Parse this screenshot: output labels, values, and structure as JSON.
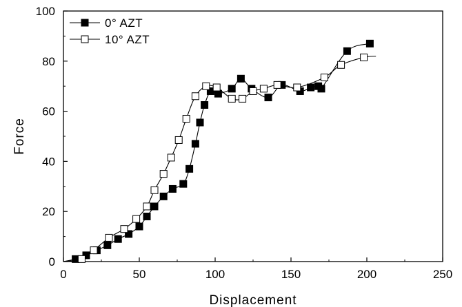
{
  "chart_data": {
    "type": "line",
    "title": "",
    "xlabel": "Displacement",
    "ylabel": "Force",
    "xlim": [
      0,
      250
    ],
    "ylim": [
      0,
      100
    ],
    "x_ticks": [
      0,
      50,
      100,
      150,
      200,
      250
    ],
    "y_ticks": [
      0,
      20,
      40,
      60,
      80,
      100
    ],
    "x_tick_labels": [
      "0",
      "50",
      "100",
      "150",
      "200",
      "250"
    ],
    "y_tick_labels": [
      "0",
      "20",
      "40",
      "60",
      "80",
      "100"
    ],
    "grid": false,
    "legend_position": "top-left",
    "series": [
      {
        "name": "0° AZT",
        "marker": "filled-square",
        "color": "#000000",
        "x": [
          8,
          15,
          22,
          29,
          36,
          43,
          50,
          55,
          60,
          66,
          72,
          79,
          83,
          87,
          90,
          93,
          97,
          102,
          111,
          117,
          124,
          135,
          144,
          156,
          163,
          168,
          170,
          187,
          202
        ],
        "y": [
          1,
          2.5,
          4.5,
          6.5,
          9,
          11,
          14,
          18,
          22,
          26,
          29,
          31,
          37,
          47,
          55.5,
          62.5,
          68,
          67,
          69,
          73,
          69,
          65.5,
          70.5,
          68,
          69.5,
          70,
          69,
          84,
          87
        ]
      },
      {
        "name": "10° AZT",
        "marker": "open-square",
        "color": "#000000",
        "x": [
          12,
          20,
          30,
          40,
          48,
          55,
          60,
          66,
          71,
          76,
          81,
          87,
          94,
          101,
          111,
          118,
          125,
          132,
          141,
          154,
          172,
          183,
          198
        ],
        "y": [
          1,
          4.5,
          9.5,
          13,
          17,
          22,
          28.5,
          35,
          41.5,
          48.5,
          57,
          66,
          70,
          69.5,
          65,
          65,
          68,
          69,
          70.5,
          69.5,
          73.5,
          78.5,
          81.5
        ]
      }
    ]
  }
}
